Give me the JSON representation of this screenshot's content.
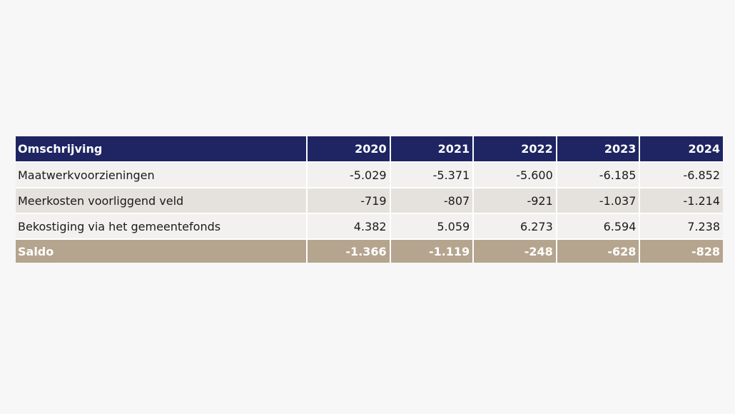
{
  "table": {
    "headers": [
      "Omschrijving",
      "2020",
      "2021",
      "2022",
      "2023",
      "2024"
    ],
    "rows": [
      {
        "label": "Maatwerkvoorzieningen",
        "values": [
          "-5.029",
          "-5.371",
          "-5.600",
          "-6.185",
          "-6.852"
        ]
      },
      {
        "label": "Meerkosten voorliggend veld",
        "values": [
          "-719",
          "-807",
          "-921",
          "-1.037",
          "-1.214"
        ]
      },
      {
        "label": "Bekostiging via het gemeentefonds",
        "values": [
          "4.382",
          "5.059",
          "6.273",
          "6.594",
          "7.238"
        ]
      }
    ],
    "total": {
      "label": "Saldo",
      "values": [
        "-1.366",
        "-1.119",
        "-248",
        "-628",
        "-828"
      ]
    }
  },
  "colors": {
    "header_bg": "#1e2562",
    "total_bg": "#b5a58e",
    "row_light": "#f2f1ef",
    "row_dark": "#e5e2de"
  }
}
